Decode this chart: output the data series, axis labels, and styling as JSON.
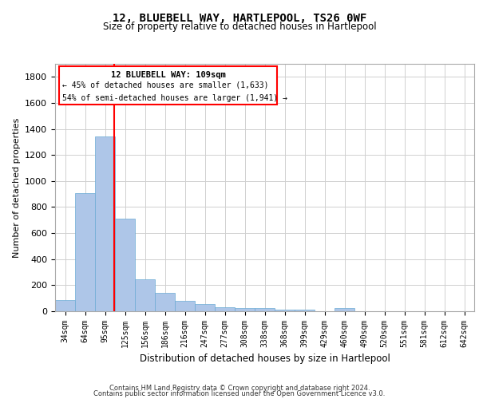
{
  "title": "12, BLUEBELL WAY, HARTLEPOOL, TS26 0WF",
  "subtitle": "Size of property relative to detached houses in Hartlepool",
  "xlabel": "Distribution of detached houses by size in Hartlepool",
  "ylabel": "Number of detached properties",
  "categories": [
    "34sqm",
    "64sqm",
    "95sqm",
    "125sqm",
    "156sqm",
    "186sqm",
    "216sqm",
    "247sqm",
    "277sqm",
    "308sqm",
    "338sqm",
    "368sqm",
    "399sqm",
    "429sqm",
    "460sqm",
    "490sqm",
    "520sqm",
    "551sqm",
    "581sqm",
    "612sqm",
    "642sqm"
  ],
  "values": [
    85,
    905,
    1340,
    710,
    248,
    140,
    82,
    55,
    30,
    25,
    22,
    15,
    12,
    0,
    22,
    0,
    0,
    0,
    0,
    0,
    0
  ],
  "bar_color": "#aec6e8",
  "bar_edge_color": "#6aaad4",
  "red_line_label": "12 BLUEBELL WAY: 109sqm",
  "annotation_line1": "← 45% of detached houses are smaller (1,633)",
  "annotation_line2": "54% of semi-detached houses are larger (1,941) →",
  "ylim": [
    0,
    1900
  ],
  "yticks": [
    0,
    200,
    400,
    600,
    800,
    1000,
    1200,
    1400,
    1600,
    1800
  ],
  "grid_color": "#d0d0d0",
  "footer_line1": "Contains HM Land Registry data © Crown copyright and database right 2024.",
  "footer_line2": "Contains public sector information licensed under the Open Government Licence v3.0."
}
